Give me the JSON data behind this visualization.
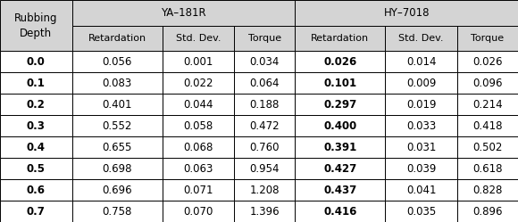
{
  "rubbing_depths": [
    "0.0",
    "0.1",
    "0.2",
    "0.3",
    "0.4",
    "0.5",
    "0.6",
    "0.7"
  ],
  "ya181r": {
    "retardation": [
      "0.056",
      "0.083",
      "0.401",
      "0.552",
      "0.655",
      "0.698",
      "0.696",
      "0.758"
    ],
    "std_dev": [
      "0.001",
      "0.022",
      "0.044",
      "0.058",
      "0.068",
      "0.063",
      "0.071",
      "0.070"
    ],
    "torque": [
      "0.034",
      "0.064",
      "0.188",
      "0.472",
      "0.760",
      "0.954",
      "1.208",
      "1.396"
    ]
  },
  "hy7018": {
    "retardation": [
      "0.026",
      "0.101",
      "0.297",
      "0.400",
      "0.391",
      "0.427",
      "0.437",
      "0.416"
    ],
    "std_dev": [
      "0.014",
      "0.009",
      "0.019",
      "0.033",
      "0.031",
      "0.039",
      "0.041",
      "0.035"
    ],
    "torque": [
      "0.026",
      "0.096",
      "0.214",
      "0.418",
      "0.502",
      "0.618",
      "0.828",
      "0.896"
    ]
  },
  "header_bg": "#d4d4d4",
  "subheader_bg": "#d4d4d4",
  "body_bg": "#ffffff",
  "border_color": "#000000",
  "text_color": "#000000",
  "col1_label": "Rubbing\nDepth",
  "group1_label": "YA–181R",
  "group2_label": "HY–7018",
  "sub_col_labels": [
    "Retardation",
    "Std. Dev.",
    "Torque",
    "Retardation",
    "Std. Dev.",
    "Torque"
  ],
  "font_size_header": 8.5,
  "font_size_subheader": 8.0,
  "font_size_body": 8.5
}
